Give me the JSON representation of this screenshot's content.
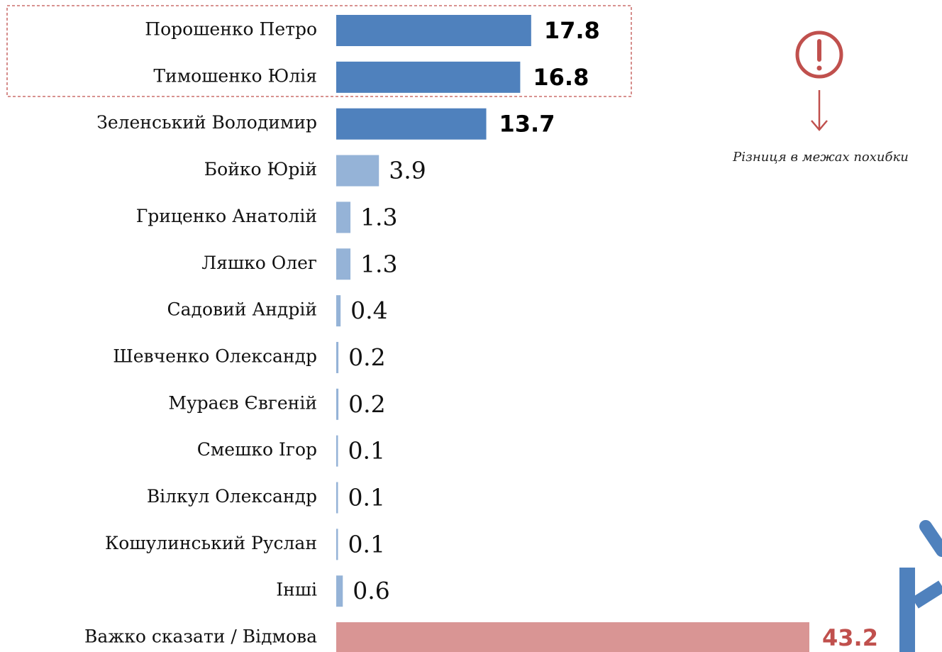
{
  "chart_data": {
    "type": "bar",
    "orientation": "horizontal",
    "categories": [
      "Порошенко Петро",
      "Тимошенко Юлія",
      "Зеленський Володимир",
      "Бойко Юрій",
      "Гриценко Анатолій",
      "Ляшко Олег",
      "Садовий Андрій",
      "Шевченко Олександр",
      "Мураєв Євгеній",
      "Смешко Ігор",
      "Вілкул Олександр",
      "Кошулинський Руслан",
      "Інші",
      "Важко сказати / Відмова"
    ],
    "values": [
      17.8,
      16.8,
      13.7,
      3.9,
      1.3,
      1.3,
      0.4,
      0.2,
      0.2,
      0.1,
      0.1,
      0.1,
      0.6,
      43.2
    ],
    "colors": [
      "#4f81bd",
      "#4f81bd",
      "#4f81bd",
      "#95b3d7",
      "#95b3d7",
      "#95b3d7",
      "#95b3d7",
      "#95b3d7",
      "#95b3d7",
      "#95b3d7",
      "#95b3d7",
      "#95b3d7",
      "#95b3d7",
      "#d99594"
    ],
    "annotation": "Різниця в межах похибки"
  }
}
